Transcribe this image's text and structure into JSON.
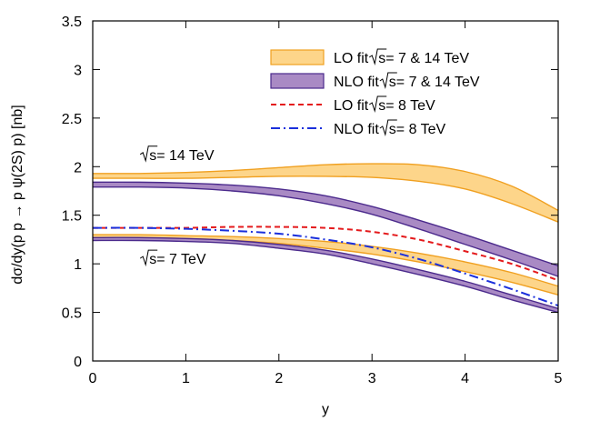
{
  "chart_data": {
    "type": "area",
    "xlabel": "y",
    "ylabel": "dσ/dy(p p → p ψ(2S) p) [nb]",
    "xlim": [
      0,
      5
    ],
    "ylim": [
      0,
      3.5
    ],
    "xticks": [
      "0",
      "1",
      "2",
      "3",
      "4",
      "5"
    ],
    "yticks": [
      "0",
      "0.5",
      "1",
      "1.5",
      "2",
      "2.5",
      "3",
      "3.5"
    ],
    "grid": false,
    "legend_position": "top-right",
    "legend": [
      {
        "prefix": "LO fit ",
        "root": "s",
        "suffix": " = 7 & 14 TeV",
        "style": "band",
        "fill": "#fdd58a",
        "stroke": "#f0a020"
      },
      {
        "prefix": "NLO fit ",
        "root": "s",
        "suffix": " = 7 & 14 TeV",
        "style": "band",
        "fill": "#a98ac4",
        "stroke": "#4b2a8c"
      },
      {
        "prefix": "LO fit ",
        "root": "s",
        "suffix": " = 8 TeV",
        "style": "dashed",
        "stroke": "#e41a1c"
      },
      {
        "prefix": "NLO fit ",
        "root": "s",
        "suffix": " = 8 TeV",
        "style": "dashdot",
        "stroke": "#1a2fdc"
      }
    ],
    "annotations": [
      {
        "root": "s",
        "suffix": " = 14 TeV",
        "x": 0.5,
        "y": 2.07
      },
      {
        "root": "s",
        "suffix": " = 7 TeV",
        "x": 0.5,
        "y": 1.0
      }
    ],
    "x": [
      0,
      0.5,
      1,
      1.5,
      2,
      2.5,
      3,
      3.5,
      4,
      4.5,
      5
    ],
    "series": [
      {
        "style": "band",
        "fill": "#fdd58a",
        "stroke": "#f0a020",
        "upper": [
          1.93,
          1.93,
          1.94,
          1.96,
          1.99,
          2.02,
          2.03,
          2.02,
          1.95,
          1.8,
          1.55
        ],
        "lower": [
          1.88,
          1.88,
          1.88,
          1.89,
          1.9,
          1.9,
          1.89,
          1.85,
          1.77,
          1.62,
          1.43
        ]
      },
      {
        "style": "band",
        "fill": "#a98ac4",
        "stroke": "#4b2a8c",
        "upper": [
          1.84,
          1.84,
          1.83,
          1.81,
          1.77,
          1.7,
          1.59,
          1.45,
          1.3,
          1.14,
          0.98
        ],
        "lower": [
          1.79,
          1.79,
          1.78,
          1.75,
          1.7,
          1.62,
          1.51,
          1.36,
          1.2,
          1.04,
          0.87
        ]
      },
      {
        "style": "band",
        "fill": "#fdd58a",
        "stroke": "#f0a020",
        "upper": [
          1.3,
          1.3,
          1.29,
          1.28,
          1.26,
          1.23,
          1.18,
          1.11,
          1.02,
          0.91,
          0.77
        ],
        "lower": [
          1.27,
          1.27,
          1.26,
          1.24,
          1.21,
          1.16,
          1.1,
          1.02,
          0.92,
          0.81,
          0.68
        ]
      },
      {
        "style": "band",
        "fill": "#a98ac4",
        "stroke": "#4b2a8c",
        "upper": [
          1.27,
          1.27,
          1.26,
          1.24,
          1.2,
          1.14,
          1.05,
          0.94,
          0.82,
          0.68,
          0.54
        ],
        "lower": [
          1.24,
          1.24,
          1.23,
          1.21,
          1.16,
          1.1,
          1.0,
          0.89,
          0.77,
          0.63,
          0.5
        ]
      },
      {
        "style": "dashed",
        "stroke": "#e41a1c",
        "values": [
          1.37,
          1.37,
          1.37,
          1.38,
          1.38,
          1.37,
          1.33,
          1.25,
          1.13,
          1.0,
          0.83
        ]
      },
      {
        "style": "dashdot",
        "stroke": "#1a2fdc",
        "values": [
          1.37,
          1.37,
          1.36,
          1.34,
          1.31,
          1.25,
          1.17,
          1.05,
          0.9,
          0.74,
          0.57
        ]
      }
    ]
  }
}
